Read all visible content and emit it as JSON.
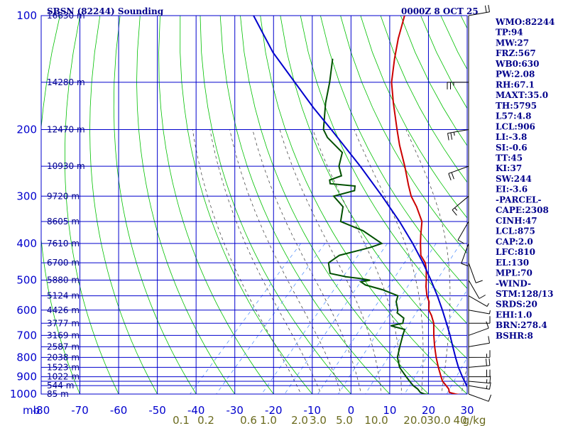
{
  "header": {
    "station": "SBSN (82244) Sounding",
    "time": "0000Z  8 OCT 25"
  },
  "colors": {
    "grid": "#0000cd",
    "temperature": "#cc0000",
    "dewpoint": "#005000",
    "parcel": "#0000cd",
    "dry_adiabat": "#00c000",
    "moist_adiabat": "#333333",
    "mixing_ratio": "#4488ff",
    "index_text": "#00008b"
  },
  "chart_data": {
    "type": "skew-t",
    "pressure_label": "mb",
    "pressure_ticks": [
      100,
      200,
      300,
      400,
      500,
      600,
      700,
      800,
      900,
      1000
    ],
    "pressure_lines": [
      100,
      150,
      200,
      250,
      300,
      350,
      400,
      450,
      500,
      550,
      600,
      650,
      700,
      750,
      800,
      850,
      900,
      925,
      950,
      1000
    ],
    "temperature_ticks": [
      -80,
      -70,
      -60,
      -50,
      -40,
      -30,
      -20,
      -10,
      0,
      10,
      20,
      30
    ],
    "temperature_range_c": [
      -80,
      30
    ],
    "mixing_ratio_ticks": [
      "0.1",
      "0.2",
      "0.6",
      "1.0",
      "2.0",
      "3.0",
      "5.0",
      "10.0",
      "20.0",
      "30.0",
      "40",
      "g/kg"
    ],
    "height_labels": [
      {
        "p": 100,
        "text": "16630 m"
      },
      {
        "p": 150,
        "text": "14280 m"
      },
      {
        "p": 200,
        "text": "12470 m"
      },
      {
        "p": 250,
        "text": "10930 m"
      },
      {
        "p": 300,
        "text": "9720 m"
      },
      {
        "p": 350,
        "text": "8605 m"
      },
      {
        "p": 400,
        "text": "7610 m"
      },
      {
        "p": 450,
        "text": "6700 m"
      },
      {
        "p": 500,
        "text": "5880 m"
      },
      {
        "p": 550,
        "text": "5124 m"
      },
      {
        "p": 600,
        "text": "4426 m"
      },
      {
        "p": 650,
        "text": "3777 m"
      },
      {
        "p": 700,
        "text": "3169 m"
      },
      {
        "p": 750,
        "text": "2587 m"
      },
      {
        "p": 800,
        "text": "2038 m"
      },
      {
        "p": 850,
        "text": "1523 m"
      },
      {
        "p": 900,
        "text": "1022 m"
      },
      {
        "p": 950,
        "text": "544 m"
      },
      {
        "p": 1000,
        "text": "85 m"
      }
    ],
    "series": [
      {
        "key": "temperature",
        "data": [
          [
            1008,
            29.5
          ],
          [
            1000,
            27
          ],
          [
            990,
            25
          ],
          [
            970,
            24
          ],
          [
            950,
            22.5
          ],
          [
            925,
            20.5
          ],
          [
            900,
            19
          ],
          [
            850,
            16
          ],
          [
            800,
            13
          ],
          [
            750,
            10
          ],
          [
            700,
            7
          ],
          [
            650,
            4
          ],
          [
            620,
            1.5
          ],
          [
            600,
            -0.5
          ],
          [
            570,
            -2.5
          ],
          [
            550,
            -4.5
          ],
          [
            520,
            -7
          ],
          [
            500,
            -8.5
          ],
          [
            470,
            -11
          ],
          [
            450,
            -13
          ],
          [
            430,
            -16
          ],
          [
            400,
            -19
          ],
          [
            380,
            -21
          ],
          [
            350,
            -24
          ],
          [
            320,
            -29
          ],
          [
            300,
            -33
          ],
          [
            280,
            -36.5
          ],
          [
            250,
            -42
          ],
          [
            220,
            -48.5
          ],
          [
            200,
            -53
          ],
          [
            170,
            -60.5
          ],
          [
            150,
            -66
          ],
          [
            130,
            -71
          ],
          [
            115,
            -75
          ],
          [
            100,
            -79
          ]
        ]
      },
      {
        "key": "dewpoint",
        "data": [
          [
            1008,
            22
          ],
          [
            1000,
            19
          ],
          [
            990,
            17.5
          ],
          [
            970,
            16
          ],
          [
            950,
            14
          ],
          [
            925,
            12
          ],
          [
            900,
            10
          ],
          [
            850,
            6
          ],
          [
            800,
            3
          ],
          [
            750,
            1
          ],
          [
            700,
            -1
          ],
          [
            675,
            -2
          ],
          [
            660,
            -6.5
          ],
          [
            650,
            -4
          ],
          [
            630,
            -5
          ],
          [
            610,
            -8
          ],
          [
            600,
            -8.5
          ],
          [
            570,
            -11
          ],
          [
            550,
            -12
          ],
          [
            530,
            -17.5
          ],
          [
            515,
            -23
          ],
          [
            505,
            -25
          ],
          [
            500,
            -23
          ],
          [
            495,
            -26
          ],
          [
            490,
            -30
          ],
          [
            480,
            -35
          ],
          [
            450,
            -38
          ],
          [
            430,
            -37
          ],
          [
            410,
            -31
          ],
          [
            400,
            -29
          ],
          [
            370,
            -37
          ],
          [
            350,
            -45
          ],
          [
            320,
            -48
          ],
          [
            300,
            -53
          ],
          [
            290,
            -49
          ],
          [
            282,
            -50
          ],
          [
            278,
            -57
          ],
          [
            272,
            -58
          ],
          [
            265,
            -56
          ],
          [
            250,
            -59
          ],
          [
            230,
            -61.5
          ],
          [
            210,
            -69
          ],
          [
            200,
            -72
          ],
          [
            170,
            -78
          ],
          [
            150,
            -82
          ],
          [
            130,
            -87
          ]
        ]
      },
      {
        "key": "parcel",
        "data": [
          [
            1000,
            31
          ],
          [
            950,
            27.8
          ],
          [
            900,
            24.5
          ],
          [
            850,
            21.2
          ],
          [
            800,
            18
          ],
          [
            750,
            14.7
          ],
          [
            700,
            11.2
          ],
          [
            650,
            7.3
          ],
          [
            600,
            3
          ],
          [
            550,
            -1.8
          ],
          [
            500,
            -7.3
          ],
          [
            450,
            -13.6
          ],
          [
            400,
            -21
          ],
          [
            350,
            -29.8
          ],
          [
            300,
            -40.5
          ],
          [
            250,
            -53.5
          ],
          [
            200,
            -70
          ],
          [
            175,
            -80
          ],
          [
            150,
            -91
          ],
          [
            125,
            -104
          ],
          [
            100,
            -118
          ]
        ]
      }
    ],
    "wind_barbs": [
      {
        "p": 1000,
        "dir": 110,
        "kt": 10
      },
      {
        "p": 950,
        "dir": 100,
        "kt": 15
      },
      {
        "p": 925,
        "dir": 95,
        "kt": 15
      },
      {
        "p": 900,
        "dir": 90,
        "kt": 20
      },
      {
        "p": 850,
        "dir": 85,
        "kt": 20
      },
      {
        "p": 800,
        "dir": 90,
        "kt": 15
      },
      {
        "p": 750,
        "dir": 80,
        "kt": 10
      },
      {
        "p": 700,
        "dir": 70,
        "kt": 10
      },
      {
        "p": 650,
        "dir": 90,
        "kt": 10
      },
      {
        "p": 600,
        "dir": 100,
        "kt": 5
      },
      {
        "p": 550,
        "dir": 120,
        "kt": 5
      },
      {
        "p": 500,
        "dir": 150,
        "kt": 10
      },
      {
        "p": 450,
        "dir": 160,
        "kt": 10
      },
      {
        "p": 400,
        "dir": 200,
        "kt": 10
      },
      {
        "p": 350,
        "dir": 210,
        "kt": 10
      },
      {
        "p": 300,
        "dir": 230,
        "kt": 15
      },
      {
        "p": 250,
        "dir": 250,
        "kt": 20
      },
      {
        "p": 200,
        "dir": 260,
        "kt": 25
      },
      {
        "p": 150,
        "dir": 270,
        "kt": 25
      },
      {
        "p": 100,
        "dir": 80,
        "kt": 20
      }
    ]
  },
  "indices": [
    "WMO:82244",
    "TP:94",
    "MW:27",
    "FRZ:567",
    "WB0:630",
    "PW:2.08",
    "RH:67.1",
    "MAXT:35.0",
    "TH:5795",
    "L57:4.8",
    "LCL:906",
    "LI:-3.8",
    "SI:-0.6",
    "TT:45",
    "KI:37",
    "SW:244",
    "EI:-3.6",
    "-PARCEL-",
    "CAPE:2308",
    "CINH:47",
    "LCL:875",
    "CAP:2.0",
    "LFC:810",
    "EL:130",
    "MPL:70",
    "-WIND-",
    "STM:128/13",
    "SRDS:20",
    "EHI:1.0",
    "BRN:278.4",
    "BSHR:8"
  ]
}
